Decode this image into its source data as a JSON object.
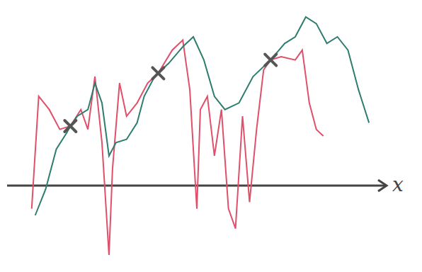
{
  "chart_data": {
    "type": "line",
    "x_label": "x",
    "xlim": [
      0,
      540
    ],
    "ylim": [
      -12,
      27
    ],
    "tick_labels": false,
    "grid": false,
    "series": [
      {
        "color": "#e0506a",
        "x": [
          35,
          45,
          60,
          75,
          90,
          105,
          115,
          125,
          135,
          145,
          150,
          160,
          170,
          185,
          200,
          215,
          235,
          250,
          260,
          270,
          275,
          285,
          295,
          305,
          315,
          325,
          335,
          345,
          355,
          365,
          375,
          390,
          410,
          420,
          430,
          440,
          450
        ],
        "values": [
          -3.5,
          13.5,
          11.5,
          8.5,
          9,
          11.5,
          8.5,
          16.5,
          6.5,
          -10.5,
          2.5,
          15.5,
          10.5,
          12.5,
          15.5,
          17,
          20.5,
          22,
          14.5,
          -3.5,
          11.5,
          13.5,
          4.5,
          11.5,
          -3.5,
          -6.5,
          10.5,
          -2.5,
          8.5,
          17.5,
          19,
          19.5,
          19,
          20.5,
          12.5,
          8.5,
          7.5
        ]
      },
      {
        "color": "#2e7d6e",
        "x": [
          40,
          55,
          70,
          85,
          90,
          100,
          115,
          125,
          135,
          145,
          155,
          170,
          185,
          195,
          210,
          215,
          230,
          250,
          265,
          280,
          295,
          310,
          330,
          350,
          375,
          395,
          410,
          425,
          440,
          455,
          470,
          485,
          500,
          515
        ],
        "values": [
          -4.5,
          -0.5,
          5.5,
          8,
          9,
          10.5,
          11.5,
          15.5,
          12.5,
          4.5,
          6.5,
          7,
          9.5,
          13.5,
          16.5,
          17,
          18.5,
          21,
          22.5,
          19,
          13.5,
          11.5,
          12.5,
          16.5,
          19,
          21.5,
          22.5,
          25.5,
          24.5,
          21.5,
          22.5,
          20.5,
          14.5,
          9.5
        ]
      }
    ],
    "crossings": {
      "x": [
        90,
        215,
        375
      ],
      "y": [
        9,
        17,
        19
      ],
      "color": "#555555",
      "marker": "x"
    }
  }
}
